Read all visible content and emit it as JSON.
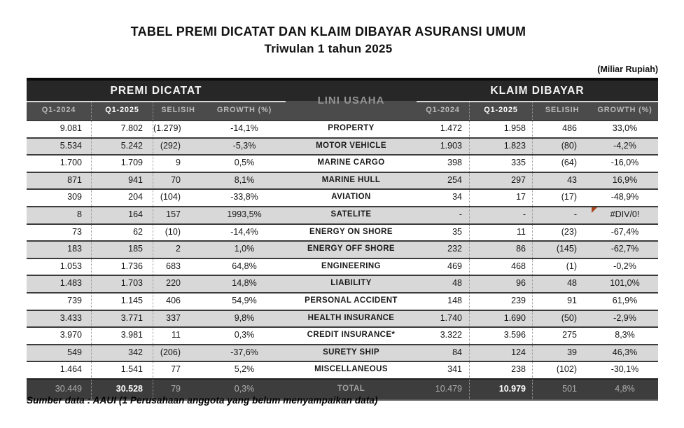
{
  "page": {
    "title_line1": "TABEL PREMI DICATAT DAN KLAIM DIBAYAR ASURANSI UMUM",
    "title_line2": "Triwulan 1 tahun 2025",
    "unit_note": "(Miliar Rupiah)",
    "footer_note": "Sumber data : AAUI (1 Perusahaan anggota yang belum menyampaikan data)"
  },
  "table": {
    "group_headers": {
      "premi": "PREMI DICATAT",
      "lini_usaha": "LINI USAHA",
      "klaim": "KLAIM DIBAYAR"
    },
    "sub_headers": [
      "Q1-2024",
      "Q1-2025",
      "SELISIH",
      "GROWTH (%)"
    ],
    "rows": [
      {
        "lini": "PROPERTY",
        "premi": [
          "9.081",
          "7.802",
          "(1.279)",
          "-14,1%"
        ],
        "klaim": [
          "1.472",
          "1.958",
          "486",
          "33,0%"
        ],
        "error_flag": false
      },
      {
        "lini": "MOTOR VEHICLE",
        "premi": [
          "5.534",
          "5.242",
          "(292)",
          "-5,3%"
        ],
        "klaim": [
          "1.903",
          "1.823",
          "(80)",
          "-4,2%"
        ],
        "error_flag": false
      },
      {
        "lini": "MARINE CARGO",
        "premi": [
          "1.700",
          "1.709",
          "9",
          "0,5%"
        ],
        "klaim": [
          "398",
          "335",
          "(64)",
          "-16,0%"
        ],
        "error_flag": false
      },
      {
        "lini": "MARINE HULL",
        "premi": [
          "871",
          "941",
          "70",
          "8,1%"
        ],
        "klaim": [
          "254",
          "297",
          "43",
          "16,9%"
        ],
        "error_flag": false
      },
      {
        "lini": "AVIATION",
        "premi": [
          "309",
          "204",
          "(104)",
          "-33,8%"
        ],
        "klaim": [
          "34",
          "17",
          "(17)",
          "-48,9%"
        ],
        "error_flag": false
      },
      {
        "lini": "SATELITE",
        "premi": [
          "8",
          "164",
          "157",
          "1993,5%"
        ],
        "klaim": [
          "-",
          "-",
          "-",
          "#DIV/0!"
        ],
        "error_flag": true
      },
      {
        "lini": "ENERGY ON SHORE",
        "premi": [
          "73",
          "62",
          "(10)",
          "-14,4%"
        ],
        "klaim": [
          "35",
          "11",
          "(23)",
          "-67,4%"
        ],
        "error_flag": false
      },
      {
        "lini": "ENERGY OFF SHORE",
        "premi": [
          "183",
          "185",
          "2",
          "1,0%"
        ],
        "klaim": [
          "232",
          "86",
          "(145)",
          "-62,7%"
        ],
        "error_flag": false
      },
      {
        "lini": "ENGINEERING",
        "premi": [
          "1.053",
          "1.736",
          "683",
          "64,8%"
        ],
        "klaim": [
          "469",
          "468",
          "(1)",
          "-0,2%"
        ],
        "error_flag": false
      },
      {
        "lini": "LIABILITY",
        "premi": [
          "1.483",
          "1.703",
          "220",
          "14,8%"
        ],
        "klaim": [
          "48",
          "96",
          "48",
          "101,0%"
        ],
        "error_flag": false
      },
      {
        "lini": "PERSONAL ACCIDENT",
        "premi": [
          "739",
          "1.145",
          "406",
          "54,9%"
        ],
        "klaim": [
          "148",
          "239",
          "91",
          "61,9%"
        ],
        "error_flag": false
      },
      {
        "lini": "HEALTH INSURANCE",
        "premi": [
          "3.433",
          "3.771",
          "337",
          "9,8%"
        ],
        "klaim": [
          "1.740",
          "1.690",
          "(50)",
          "-2,9%"
        ],
        "error_flag": false
      },
      {
        "lini": "CREDIT INSURANCE*",
        "premi": [
          "3.970",
          "3.981",
          "11",
          "0,3%"
        ],
        "klaim": [
          "3.322",
          "3.596",
          "275",
          "8,3%"
        ],
        "error_flag": false
      },
      {
        "lini": "SURETY SHIP",
        "premi": [
          "549",
          "342",
          "(206)",
          "-37,6%"
        ],
        "klaim": [
          "84",
          "124",
          "39",
          "46,3%"
        ],
        "error_flag": false
      },
      {
        "lini": "MISCELLANEOUS",
        "premi": [
          "1.464",
          "1.541",
          "77",
          "5,2%"
        ],
        "klaim": [
          "341",
          "238",
          "(102)",
          "-30,1%"
        ],
        "error_flag": false
      }
    ],
    "total": {
      "lini": "TOTAL",
      "premi": [
        "30.449",
        "30.528",
        "79",
        "0,3%"
      ],
      "klaim": [
        "10.479",
        "10.979",
        "501",
        "4,8%"
      ]
    }
  },
  "colors": {
    "header_band": "#272727",
    "subheader_band": "#4b4b4b",
    "total_band": "#3d3d3d",
    "stripe_gray": "#d8d8d8",
    "error_flag_red": "#a8431a"
  }
}
